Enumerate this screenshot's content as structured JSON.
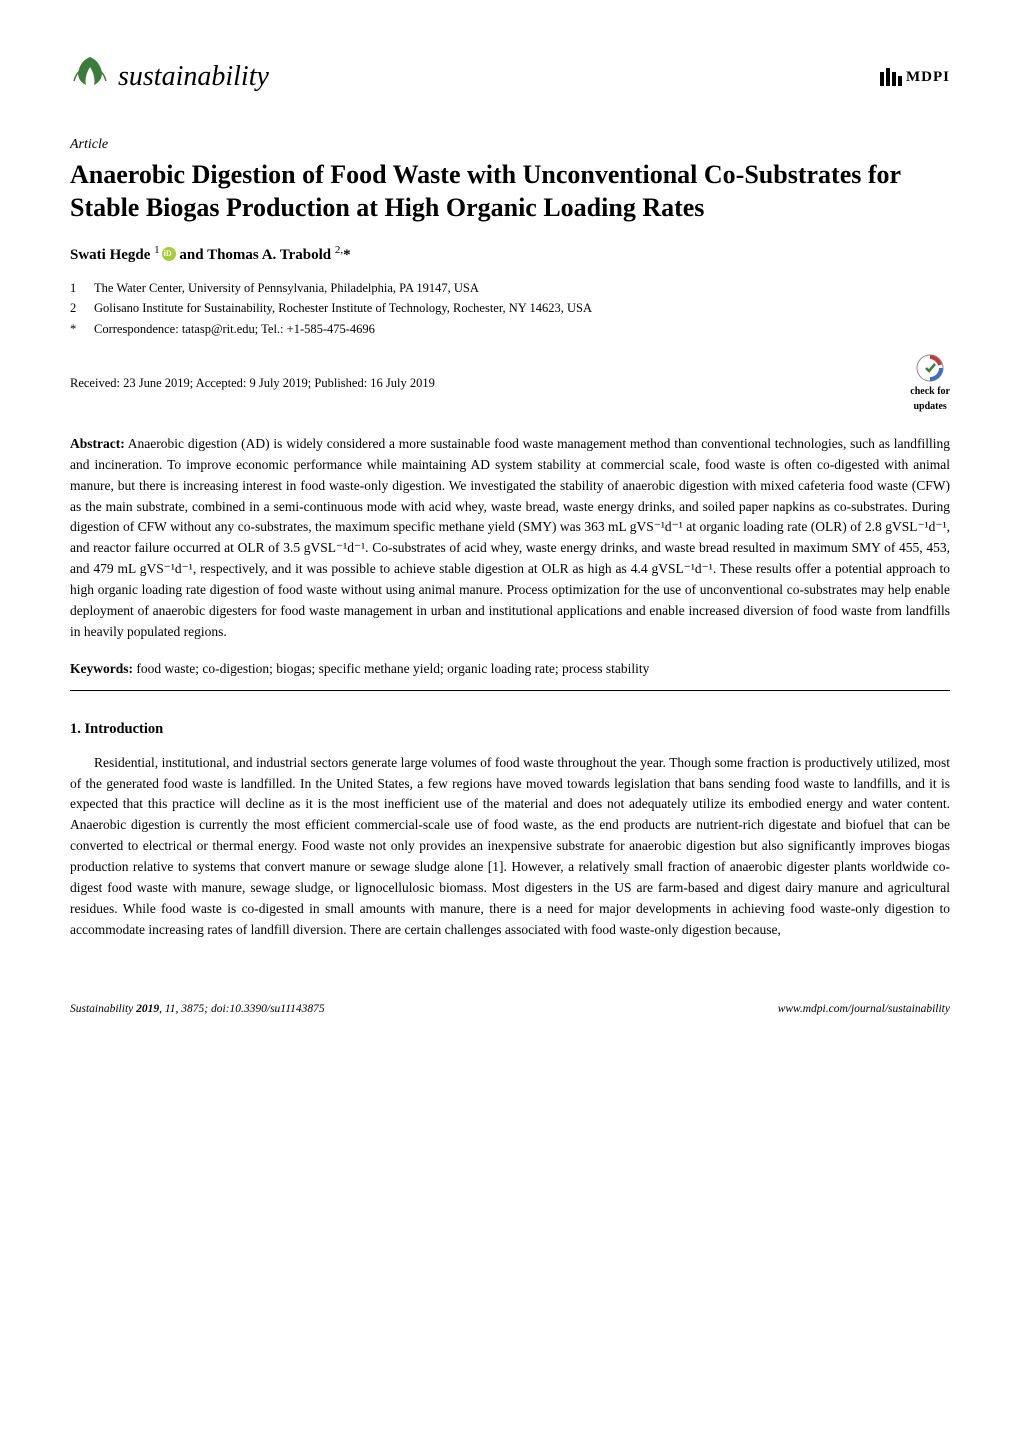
{
  "journal": {
    "name": "sustainability",
    "logo_leaf_color": "#3a7d3a",
    "publisher": "MDPI",
    "mdpi_bar_heights": [
      14,
      18,
      14,
      10
    ]
  },
  "article": {
    "type_label": "Article",
    "title": "Anaerobic Digestion of Food Waste with Unconventional Co-Substrates for Stable Biogas Production at High Organic Loading Rates",
    "authors_html": "Swati Hegde <sup>1</sup><span class='orcid-icon' data-name='orcid-icon' data-interactable='false'></span> and Thomas A. Trabold <sup>2,</sup>*",
    "affiliations": [
      {
        "num": "1",
        "text": "The Water Center, University of Pennsylvania, Philadelphia, PA 19147, USA"
      },
      {
        "num": "2",
        "text": "Golisano Institute for Sustainability, Rochester Institute of Technology, Rochester, NY 14623, USA"
      },
      {
        "num": "*",
        "text": "Correspondence: tatasp@rit.edu; Tel.: +1-585-475-4696"
      }
    ],
    "dates": "Received: 23 June 2019; Accepted: 9 July 2019; Published: 16 July 2019",
    "check_updates_label": "check for updates",
    "abstract_label": "Abstract:",
    "abstract_text": "Anaerobic digestion (AD) is widely considered a more sustainable food waste management method than conventional technologies, such as landfilling and incineration. To improve economic performance while maintaining AD system stability at commercial scale, food waste is often co-digested with animal manure, but there is increasing interest in food waste-only digestion. We investigated the stability of anaerobic digestion with mixed cafeteria food waste (CFW) as the main substrate, combined in a semi-continuous mode with acid whey, waste bread, waste energy drinks, and soiled paper napkins as co-substrates. During digestion of CFW without any co-substrates, the maximum specific methane yield (SMY) was 363 mL gVS⁻¹d⁻¹ at organic loading rate (OLR) of 2.8 gVSL⁻¹d⁻¹, and reactor failure occurred at OLR of 3.5 gVSL⁻¹d⁻¹. Co-substrates of acid whey, waste energy drinks, and waste bread resulted in maximum SMY of 455, 453, and 479 mL gVS⁻¹d⁻¹, respectively, and it was possible to achieve stable digestion at OLR as high as 4.4 gVSL⁻¹d⁻¹. These results offer a potential approach to high organic loading rate digestion of food waste without using animal manure. Process optimization for the use of unconventional co-substrates may help enable deployment of anaerobic digesters for food waste management in urban and institutional applications and enable increased diversion of food waste from landfills in heavily populated regions.",
    "keywords_label": "Keywords:",
    "keywords_text": "food waste; co-digestion; biogas; specific methane yield; organic loading rate; process stability"
  },
  "section": {
    "heading": "1. Introduction",
    "paragraph": "Residential, institutional, and industrial sectors generate large volumes of food waste throughout the year. Though some fraction is productively utilized, most of the generated food waste is landfilled. In the United States, a few regions have moved towards legislation that bans sending food waste to landfills, and it is expected that this practice will decline as it is the most inefficient use of the material and does not adequately utilize its embodied energy and water content. Anaerobic digestion is currently the most efficient commercial-scale use of food waste, as the end products are nutrient-rich digestate and biofuel that can be converted to electrical or thermal energy. Food waste not only provides an inexpensive substrate for anaerobic digestion but also significantly improves biogas production relative to systems that convert manure or sewage sludge alone [1]. However, a relatively small fraction of anaerobic digester plants worldwide co-digest food waste with manure, sewage sludge, or lignocellulosic biomass. Most digesters in the US are farm-based and digest dairy manure and agricultural residues. While food waste is co-digested in small amounts with manure, there is a need for major developments in achieving food waste-only digestion to accommodate increasing rates of landfill diversion. There are certain challenges associated with food waste-only digestion because,"
  },
  "footer": {
    "left_html": "Sustainability <b>2019</b>, <i>11</i>, 3875; doi:10.3390/su11143875",
    "right": "www.mdpi.com/journal/sustainability"
  },
  "colors": {
    "text": "#000000",
    "background": "#ffffff",
    "orcid": "#A6CE39",
    "check_updates_red": "#c53b3b",
    "check_updates_blue": "#3b6fc5"
  }
}
